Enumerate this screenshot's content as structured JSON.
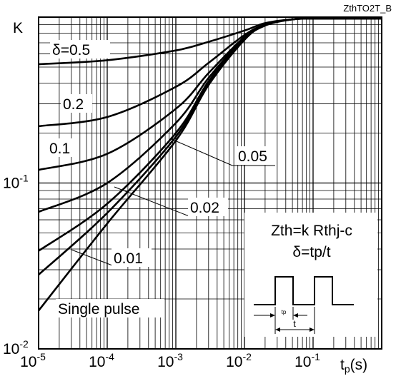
{
  "chart_data": {
    "type": "line",
    "chart_id": "ZthTO2T_B",
    "ylabel": "K",
    "xlabel_main": "t",
    "xlabel_sub": "p",
    "xlabel_unit": "(s)",
    "log_x": true,
    "log_y": true,
    "xlim": [
      1e-05,
      1
    ],
    "ylim": [
      0.01,
      1
    ],
    "x_ticks": [
      {
        "base": "10",
        "exp": "-5",
        "value": 1e-05
      },
      {
        "base": "10",
        "exp": "-4",
        "value": 0.0001
      },
      {
        "base": "10",
        "exp": "-3",
        "value": 0.001
      },
      {
        "base": "10",
        "exp": "-2",
        "value": 0.01
      },
      {
        "base": "10",
        "exp": "-1",
        "value": 0.1
      }
    ],
    "y_ticks": [
      {
        "base": "10",
        "exp": "-2",
        "value": 0.01
      },
      {
        "base": "10",
        "exp": "-1",
        "value": 0.1
      }
    ],
    "grid": true,
    "series": [
      {
        "name": "δ=0.5",
        "x": [
          1e-05,
          0.0001,
          0.001,
          0.003,
          0.01,
          0.02,
          0.05,
          0.1,
          1
        ],
        "y": [
          0.52,
          0.55,
          0.63,
          0.71,
          0.83,
          0.92,
          0.97,
          0.98,
          1.0
        ]
      },
      {
        "name": "0.2",
        "x": [
          1e-05,
          0.0001,
          0.001,
          0.003,
          0.01,
          0.02,
          0.05,
          0.1,
          1
        ],
        "y": [
          0.22,
          0.25,
          0.38,
          0.53,
          0.78,
          0.9,
          0.97,
          0.98,
          1.0
        ]
      },
      {
        "name": "0.1",
        "x": [
          1e-05,
          0.0001,
          0.001,
          0.003,
          0.01,
          0.02,
          0.05,
          0.1,
          1
        ],
        "y": [
          0.12,
          0.15,
          0.28,
          0.46,
          0.76,
          0.9,
          0.97,
          0.98,
          1.0
        ]
      },
      {
        "name": "0.05",
        "x": [
          1e-05,
          0.0001,
          0.001,
          0.003,
          0.01,
          0.02,
          0.05,
          0.1,
          1
        ],
        "y": [
          0.067,
          0.1,
          0.23,
          0.43,
          0.75,
          0.9,
          0.97,
          0.98,
          1.0
        ]
      },
      {
        "name": "0.02",
        "x": [
          1e-05,
          0.0001,
          0.001,
          0.003,
          0.01,
          0.02,
          0.05,
          0.1,
          1
        ],
        "y": [
          0.039,
          0.075,
          0.2,
          0.41,
          0.74,
          0.9,
          0.97,
          0.98,
          1.0
        ]
      },
      {
        "name": "0.01",
        "x": [
          1e-05,
          0.0001,
          0.001,
          0.003,
          0.01,
          0.02,
          0.05,
          0.1,
          1
        ],
        "y": [
          0.028,
          0.066,
          0.19,
          0.4,
          0.74,
          0.9,
          0.97,
          0.98,
          1.0
        ]
      },
      {
        "name": "Single pulse",
        "x": [
          1e-05,
          0.0001,
          0.001,
          0.003,
          0.01,
          0.02,
          0.05,
          0.1,
          1
        ],
        "y": [
          0.017,
          0.057,
          0.18,
          0.39,
          0.73,
          0.89,
          0.97,
          0.98,
          1.0
        ]
      }
    ],
    "curve_labels": [
      {
        "series": 0,
        "text": "δ=0.5"
      },
      {
        "series": 1,
        "text": "0.2"
      },
      {
        "series": 2,
        "text": "0.1"
      },
      {
        "series": 3,
        "text": "0.05"
      },
      {
        "series": 4,
        "text": "0.02"
      },
      {
        "series": 5,
        "text": "0.01"
      },
      {
        "series": 6,
        "text": "Single pulse"
      }
    ],
    "annotations": {
      "formula_1": "Zth=k Rthj-c",
      "formula_2": "δ=tp/t",
      "inset_tp": "tp",
      "inset_t": "t"
    }
  }
}
